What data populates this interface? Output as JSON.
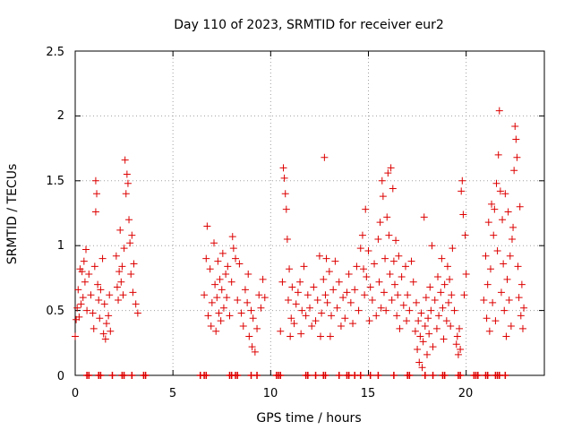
{
  "chart_data": {
    "type": "scatter",
    "title": "Day 110 of 2023, SRMTID for receiver eur2",
    "xlabel": "GPS time / hours",
    "ylabel": "SRMTID / TECUs",
    "xlim": [
      0,
      24
    ],
    "ylim": [
      0,
      2.5
    ],
    "xticks": [
      0,
      5,
      10,
      15,
      20
    ],
    "yticks": [
      0,
      0.5,
      1,
      1.5,
      2,
      2.5
    ],
    "ytick_labels": [
      "0",
      "0.5",
      "1",
      "1.5",
      "2",
      "2.5"
    ],
    "grid": true,
    "marker": "+",
    "colors": {
      "series": "#dd0000",
      "grid": "#a0a0a0",
      "axes": "#000000"
    },
    "series": [
      {
        "name": "SRMTID",
        "points": [
          [
            0.0,
            0.3
          ],
          [
            0.05,
            0.43
          ],
          [
            0.1,
            0.52
          ],
          [
            0.15,
            0.66
          ],
          [
            0.2,
            0.45
          ],
          [
            0.25,
            0.82
          ],
          [
            0.3,
            0.55
          ],
          [
            0.35,
            0.8
          ],
          [
            0.4,
            0.6
          ],
          [
            0.45,
            0.88
          ],
          [
            0.5,
            0.72
          ],
          [
            0.55,
            0.97
          ],
          [
            0.6,
            0.5
          ],
          [
            0.7,
            0.78
          ],
          [
            0.8,
            0.62
          ],
          [
            0.9,
            0.48
          ],
          [
            0.95,
            0.36
          ],
          [
            1.0,
            0.84
          ],
          [
            1.05,
            1.5
          ],
          [
            1.05,
            1.26
          ],
          [
            1.1,
            1.4
          ],
          [
            1.15,
            0.7
          ],
          [
            1.2,
            0.58
          ],
          [
            1.25,
            0.44
          ],
          [
            1.3,
            0.66
          ],
          [
            1.4,
            0.9
          ],
          [
            1.45,
            0.32
          ],
          [
            1.5,
            0.55
          ],
          [
            1.55,
            0.28
          ],
          [
            1.6,
            0.4
          ],
          [
            1.7,
            0.46
          ],
          [
            1.75,
            0.62
          ],
          [
            1.8,
            0.34
          ],
          [
            2.1,
            0.92
          ],
          [
            2.15,
            0.68
          ],
          [
            2.2,
            0.58
          ],
          [
            2.25,
            0.8
          ],
          [
            2.3,
            1.12
          ],
          [
            2.35,
            0.72
          ],
          [
            2.4,
            0.84
          ],
          [
            2.45,
            0.62
          ],
          [
            2.5,
            0.98
          ],
          [
            2.55,
            1.66
          ],
          [
            2.6,
            1.4
          ],
          [
            2.65,
            1.55
          ],
          [
            2.7,
            1.48
          ],
          [
            2.75,
            1.2
          ],
          [
            2.8,
            1.02
          ],
          [
            2.85,
            0.78
          ],
          [
            2.9,
            1.08
          ],
          [
            2.95,
            0.64
          ],
          [
            3.0,
            0.86
          ],
          [
            3.1,
            0.55
          ],
          [
            3.2,
            0.48
          ],
          [
            6.6,
            0.62
          ],
          [
            6.7,
            0.9
          ],
          [
            6.75,
            1.15
          ],
          [
            6.8,
            0.46
          ],
          [
            6.9,
            0.82
          ],
          [
            6.95,
            0.38
          ],
          [
            7.0,
            0.56
          ],
          [
            7.1,
            1.02
          ],
          [
            7.15,
            0.7
          ],
          [
            7.2,
            0.34
          ],
          [
            7.25,
            0.6
          ],
          [
            7.3,
            0.88
          ],
          [
            7.35,
            0.48
          ],
          [
            7.4,
            0.74
          ],
          [
            7.45,
            0.42
          ],
          [
            7.5,
            0.66
          ],
          [
            7.55,
            0.94
          ],
          [
            7.6,
            0.52
          ],
          [
            7.7,
            0.78
          ],
          [
            7.75,
            0.6
          ],
          [
            7.8,
            0.84
          ],
          [
            7.9,
            0.46
          ],
          [
            8.0,
            0.72
          ],
          [
            8.05,
            1.07
          ],
          [
            8.1,
            0.98
          ],
          [
            8.2,
            0.9
          ],
          [
            8.3,
            0.58
          ],
          [
            8.4,
            0.86
          ],
          [
            8.5,
            0.48
          ],
          [
            8.6,
            0.38
          ],
          [
            8.7,
            0.66
          ],
          [
            8.8,
            0.56
          ],
          [
            8.85,
            0.78
          ],
          [
            8.9,
            0.3
          ],
          [
            9.0,
            0.5
          ],
          [
            9.05,
            0.22
          ],
          [
            9.1,
            0.44
          ],
          [
            9.2,
            0.18
          ],
          [
            9.3,
            0.36
          ],
          [
            9.4,
            0.62
          ],
          [
            9.5,
            0.52
          ],
          [
            9.6,
            0.74
          ],
          [
            9.7,
            0.6
          ],
          [
            10.5,
            0.34
          ],
          [
            10.6,
            0.72
          ],
          [
            10.65,
            1.6
          ],
          [
            10.7,
            1.52
          ],
          [
            10.75,
            1.4
          ],
          [
            10.8,
            1.28
          ],
          [
            10.85,
            1.05
          ],
          [
            10.9,
            0.58
          ],
          [
            10.95,
            0.82
          ],
          [
            11.0,
            0.3
          ],
          [
            11.05,
            0.44
          ],
          [
            11.1,
            0.68
          ],
          [
            11.2,
            0.4
          ],
          [
            11.3,
            0.55
          ],
          [
            11.4,
            0.64
          ],
          [
            11.5,
            0.72
          ],
          [
            11.55,
            0.32
          ],
          [
            11.6,
            0.5
          ],
          [
            11.7,
            0.84
          ],
          [
            11.8,
            0.46
          ],
          [
            11.9,
            0.62
          ],
          [
            12.0,
            0.52
          ],
          [
            12.1,
            0.38
          ],
          [
            12.2,
            0.68
          ],
          [
            12.3,
            0.42
          ],
          [
            12.4,
            0.58
          ],
          [
            12.5,
            0.92
          ],
          [
            12.55,
            0.3
          ],
          [
            12.6,
            0.48
          ],
          [
            12.7,
            0.74
          ],
          [
            12.75,
            1.68
          ],
          [
            12.8,
            0.62
          ],
          [
            12.85,
            0.9
          ],
          [
            12.9,
            0.56
          ],
          [
            13.0,
            0.8
          ],
          [
            13.05,
            0.3
          ],
          [
            13.1,
            0.46
          ],
          [
            13.2,
            0.66
          ],
          [
            13.3,
            0.88
          ],
          [
            13.4,
            0.52
          ],
          [
            13.5,
            0.72
          ],
          [
            13.6,
            0.38
          ],
          [
            13.7,
            0.6
          ],
          [
            13.8,
            0.44
          ],
          [
            13.9,
            0.64
          ],
          [
            14.0,
            0.78
          ],
          [
            14.1,
            0.56
          ],
          [
            14.2,
            0.4
          ],
          [
            14.3,
            0.66
          ],
          [
            14.4,
            0.84
          ],
          [
            14.5,
            0.5
          ],
          [
            14.6,
            0.98
          ],
          [
            14.7,
            1.08
          ],
          [
            14.75,
            0.82
          ],
          [
            14.8,
            0.62
          ],
          [
            14.85,
            1.28
          ],
          [
            14.9,
            0.76
          ],
          [
            15.0,
            0.96
          ],
          [
            15.05,
            0.42
          ],
          [
            15.1,
            0.68
          ],
          [
            15.2,
            0.58
          ],
          [
            15.3,
            0.86
          ],
          [
            15.4,
            0.46
          ],
          [
            15.5,
            1.05
          ],
          [
            15.55,
            0.72
          ],
          [
            15.6,
            1.18
          ],
          [
            15.65,
            0.52
          ],
          [
            15.7,
            1.5
          ],
          [
            15.75,
            1.38
          ],
          [
            15.8,
            0.64
          ],
          [
            15.85,
            0.9
          ],
          [
            15.9,
            0.5
          ],
          [
            15.95,
            1.22
          ],
          [
            16.0,
            1.56
          ],
          [
            16.05,
            1.08
          ],
          [
            16.1,
            0.78
          ],
          [
            16.15,
            1.6
          ],
          [
            16.2,
            0.58
          ],
          [
            16.25,
            1.44
          ],
          [
            16.3,
            0.88
          ],
          [
            16.35,
            0.7
          ],
          [
            16.4,
            1.04
          ],
          [
            16.45,
            0.46
          ],
          [
            16.5,
            0.62
          ],
          [
            16.55,
            0.92
          ],
          [
            16.6,
            0.36
          ],
          [
            16.7,
            0.76
          ],
          [
            16.8,
            0.54
          ],
          [
            16.9,
            0.84
          ],
          [
            16.95,
            0.42
          ],
          [
            17.0,
            0.62
          ],
          [
            17.1,
            0.5
          ],
          [
            17.2,
            0.88
          ],
          [
            17.3,
            0.72
          ],
          [
            17.4,
            0.34
          ],
          [
            17.45,
            0.56
          ],
          [
            17.5,
            0.2
          ],
          [
            17.55,
            0.42
          ],
          [
            17.6,
            0.1
          ],
          [
            17.65,
            0.3
          ],
          [
            17.7,
            0.48
          ],
          [
            17.75,
            0.06
          ],
          [
            17.8,
            0.26
          ],
          [
            17.85,
            1.22
          ],
          [
            17.9,
            0.38
          ],
          [
            17.95,
            0.6
          ],
          [
            18.0,
            0.16
          ],
          [
            18.05,
            0.44
          ],
          [
            18.1,
            0.32
          ],
          [
            18.15,
            0.68
          ],
          [
            18.2,
            0.5
          ],
          [
            18.25,
            1.0
          ],
          [
            18.3,
            0.22
          ],
          [
            18.4,
            0.58
          ],
          [
            18.5,
            0.36
          ],
          [
            18.55,
            0.76
          ],
          [
            18.6,
            0.46
          ],
          [
            18.7,
            0.64
          ],
          [
            18.75,
            0.9
          ],
          [
            18.8,
            0.52
          ],
          [
            18.85,
            0.28
          ],
          [
            18.9,
            0.7
          ],
          [
            19.0,
            0.42
          ],
          [
            19.05,
            0.84
          ],
          [
            19.1,
            0.56
          ],
          [
            19.15,
            0.74
          ],
          [
            19.2,
            0.38
          ],
          [
            19.25,
            0.62
          ],
          [
            19.3,
            0.98
          ],
          [
            19.4,
            0.5
          ],
          [
            19.5,
            0.24
          ],
          [
            19.55,
            0.3
          ],
          [
            19.6,
            0.16
          ],
          [
            19.65,
            0.36
          ],
          [
            19.7,
            0.2
          ],
          [
            19.75,
            1.42
          ],
          [
            19.8,
            1.5
          ],
          [
            19.85,
            1.24
          ],
          [
            19.9,
            0.62
          ],
          [
            19.95,
            1.08
          ],
          [
            20.0,
            0.78
          ],
          [
            20.9,
            0.58
          ],
          [
            21.0,
            0.92
          ],
          [
            21.05,
            0.44
          ],
          [
            21.1,
            0.7
          ],
          [
            21.15,
            1.18
          ],
          [
            21.2,
            0.34
          ],
          [
            21.25,
            0.82
          ],
          [
            21.3,
            1.32
          ],
          [
            21.35,
            0.56
          ],
          [
            21.4,
            1.08
          ],
          [
            21.45,
            1.28
          ],
          [
            21.5,
            0.42
          ],
          [
            21.55,
            1.48
          ],
          [
            21.6,
            0.96
          ],
          [
            21.65,
            1.7
          ],
          [
            21.7,
            2.04
          ],
          [
            21.75,
            1.42
          ],
          [
            21.8,
            0.64
          ],
          [
            21.85,
            1.2
          ],
          [
            21.9,
            0.86
          ],
          [
            21.95,
            0.5
          ],
          [
            22.0,
            1.4
          ],
          [
            22.05,
            0.3
          ],
          [
            22.1,
            0.74
          ],
          [
            22.15,
            1.26
          ],
          [
            22.2,
            0.58
          ],
          [
            22.25,
            0.92
          ],
          [
            22.3,
            0.38
          ],
          [
            22.35,
            1.05
          ],
          [
            22.4,
            1.14
          ],
          [
            22.45,
            1.58
          ],
          [
            22.5,
            1.92
          ],
          [
            22.55,
            1.82
          ],
          [
            22.6,
            1.68
          ],
          [
            22.65,
            0.84
          ],
          [
            22.7,
            0.6
          ],
          [
            22.75,
            1.3
          ],
          [
            22.8,
            0.46
          ],
          [
            22.85,
            0.7
          ],
          [
            22.9,
            0.36
          ],
          [
            22.95,
            0.52
          ]
        ]
      }
    ],
    "baseline_marks_x": [
      0.6,
      0.7,
      1.2,
      1.3,
      1.9,
      2.4,
      2.5,
      2.9,
      3.5,
      3.6,
      6.4,
      6.6,
      6.7,
      7.9,
      8.0,
      8.2,
      8.3,
      9.0,
      9.3,
      10.3,
      10.4,
      10.5,
      11.8,
      11.9,
      12.3,
      12.7,
      12.8,
      13.5,
      13.9,
      14.0,
      14.3,
      14.6,
      15.1,
      15.5,
      16.3,
      17.0,
      17.1,
      17.9,
      18.3,
      18.8,
      18.9,
      19.6,
      19.7,
      20.4,
      20.5,
      20.6,
      21.0,
      21.1,
      21.5,
      21.6,
      21.7,
      22.0
    ]
  }
}
